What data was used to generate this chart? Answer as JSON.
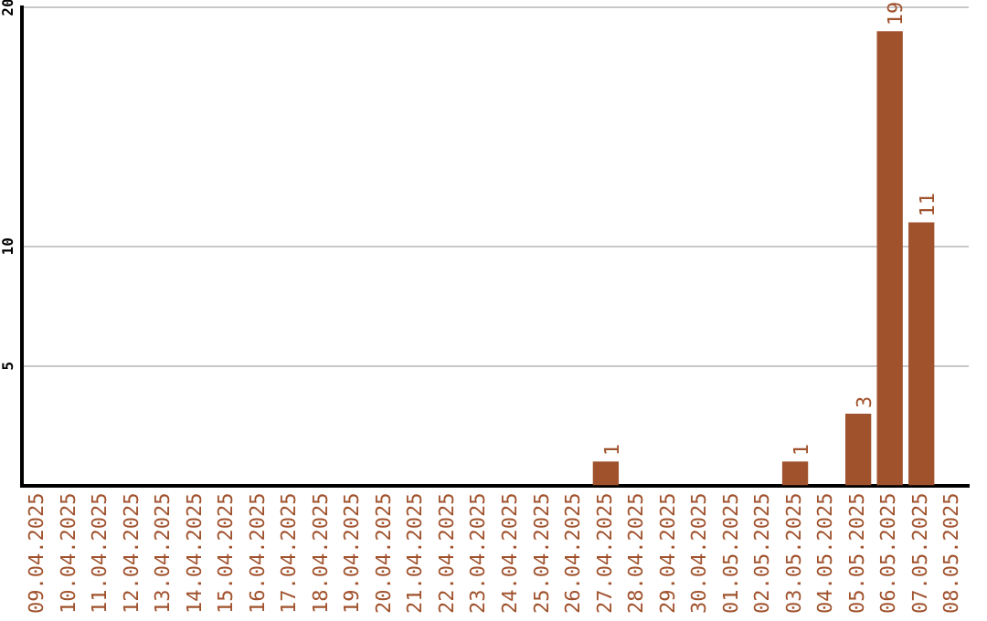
{
  "chart_data": {
    "type": "bar",
    "categories": [
      "09.04.2025",
      "10.04.2025",
      "11.04.2025",
      "12.04.2025",
      "13.04.2025",
      "14.04.2025",
      "15.04.2025",
      "16.04.2025",
      "17.04.2025",
      "18.04.2025",
      "19.04.2025",
      "20.04.2025",
      "21.04.2025",
      "22.04.2025",
      "23.04.2025",
      "24.04.2025",
      "25.04.2025",
      "26.04.2025",
      "27.04.2025",
      "28.04.2025",
      "29.04.2025",
      "30.04.2025",
      "01.05.2025",
      "02.05.2025",
      "03.05.2025",
      "04.05.2025",
      "05.05.2025",
      "06.05.2025",
      "07.05.2025",
      "08.05.2025"
    ],
    "values": [
      0,
      0,
      0,
      0,
      0,
      0,
      0,
      0,
      0,
      0,
      0,
      0,
      0,
      0,
      0,
      0,
      0,
      0,
      1,
      0,
      0,
      0,
      0,
      0,
      1,
      0,
      3,
      19,
      11,
      0
    ],
    "value_labels": [
      null,
      null,
      null,
      null,
      null,
      null,
      null,
      null,
      null,
      null,
      null,
      null,
      null,
      null,
      null,
      null,
      null,
      null,
      "1",
      null,
      null,
      null,
      null,
      null,
      "1",
      null,
      "3",
      "19",
      "11",
      null
    ],
    "color": "#a0522d",
    "ylim": [
      0,
      20
    ],
    "yticks": [
      5,
      10,
      20
    ],
    "grid": "y",
    "legend": false
  }
}
